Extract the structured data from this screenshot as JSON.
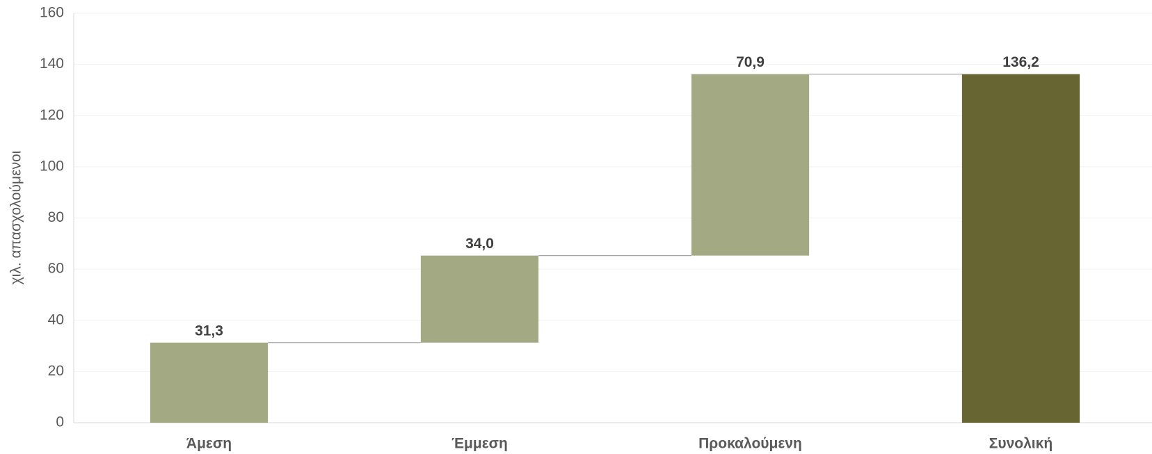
{
  "chart_data": {
    "type": "waterfall",
    "y_label": "χιλ. απασχολούμενοι",
    "categories": [
      "Άμεση",
      "Έμμεση",
      "Προκαλούμενη",
      "Συνολική"
    ],
    "values": [
      31.3,
      34.0,
      70.9,
      136.2
    ],
    "value_labels": [
      "31,3",
      "34,0",
      "70,9",
      "136,2"
    ],
    "is_total": [
      false,
      false,
      false,
      true
    ],
    "colors": [
      "#a3a982",
      "#a3a982",
      "#a3a982",
      "#676532"
    ],
    "ylim": [
      0,
      160
    ],
    "yticks": [
      0,
      20,
      40,
      60,
      80,
      100,
      120,
      140,
      160
    ],
    "grid": true
  }
}
